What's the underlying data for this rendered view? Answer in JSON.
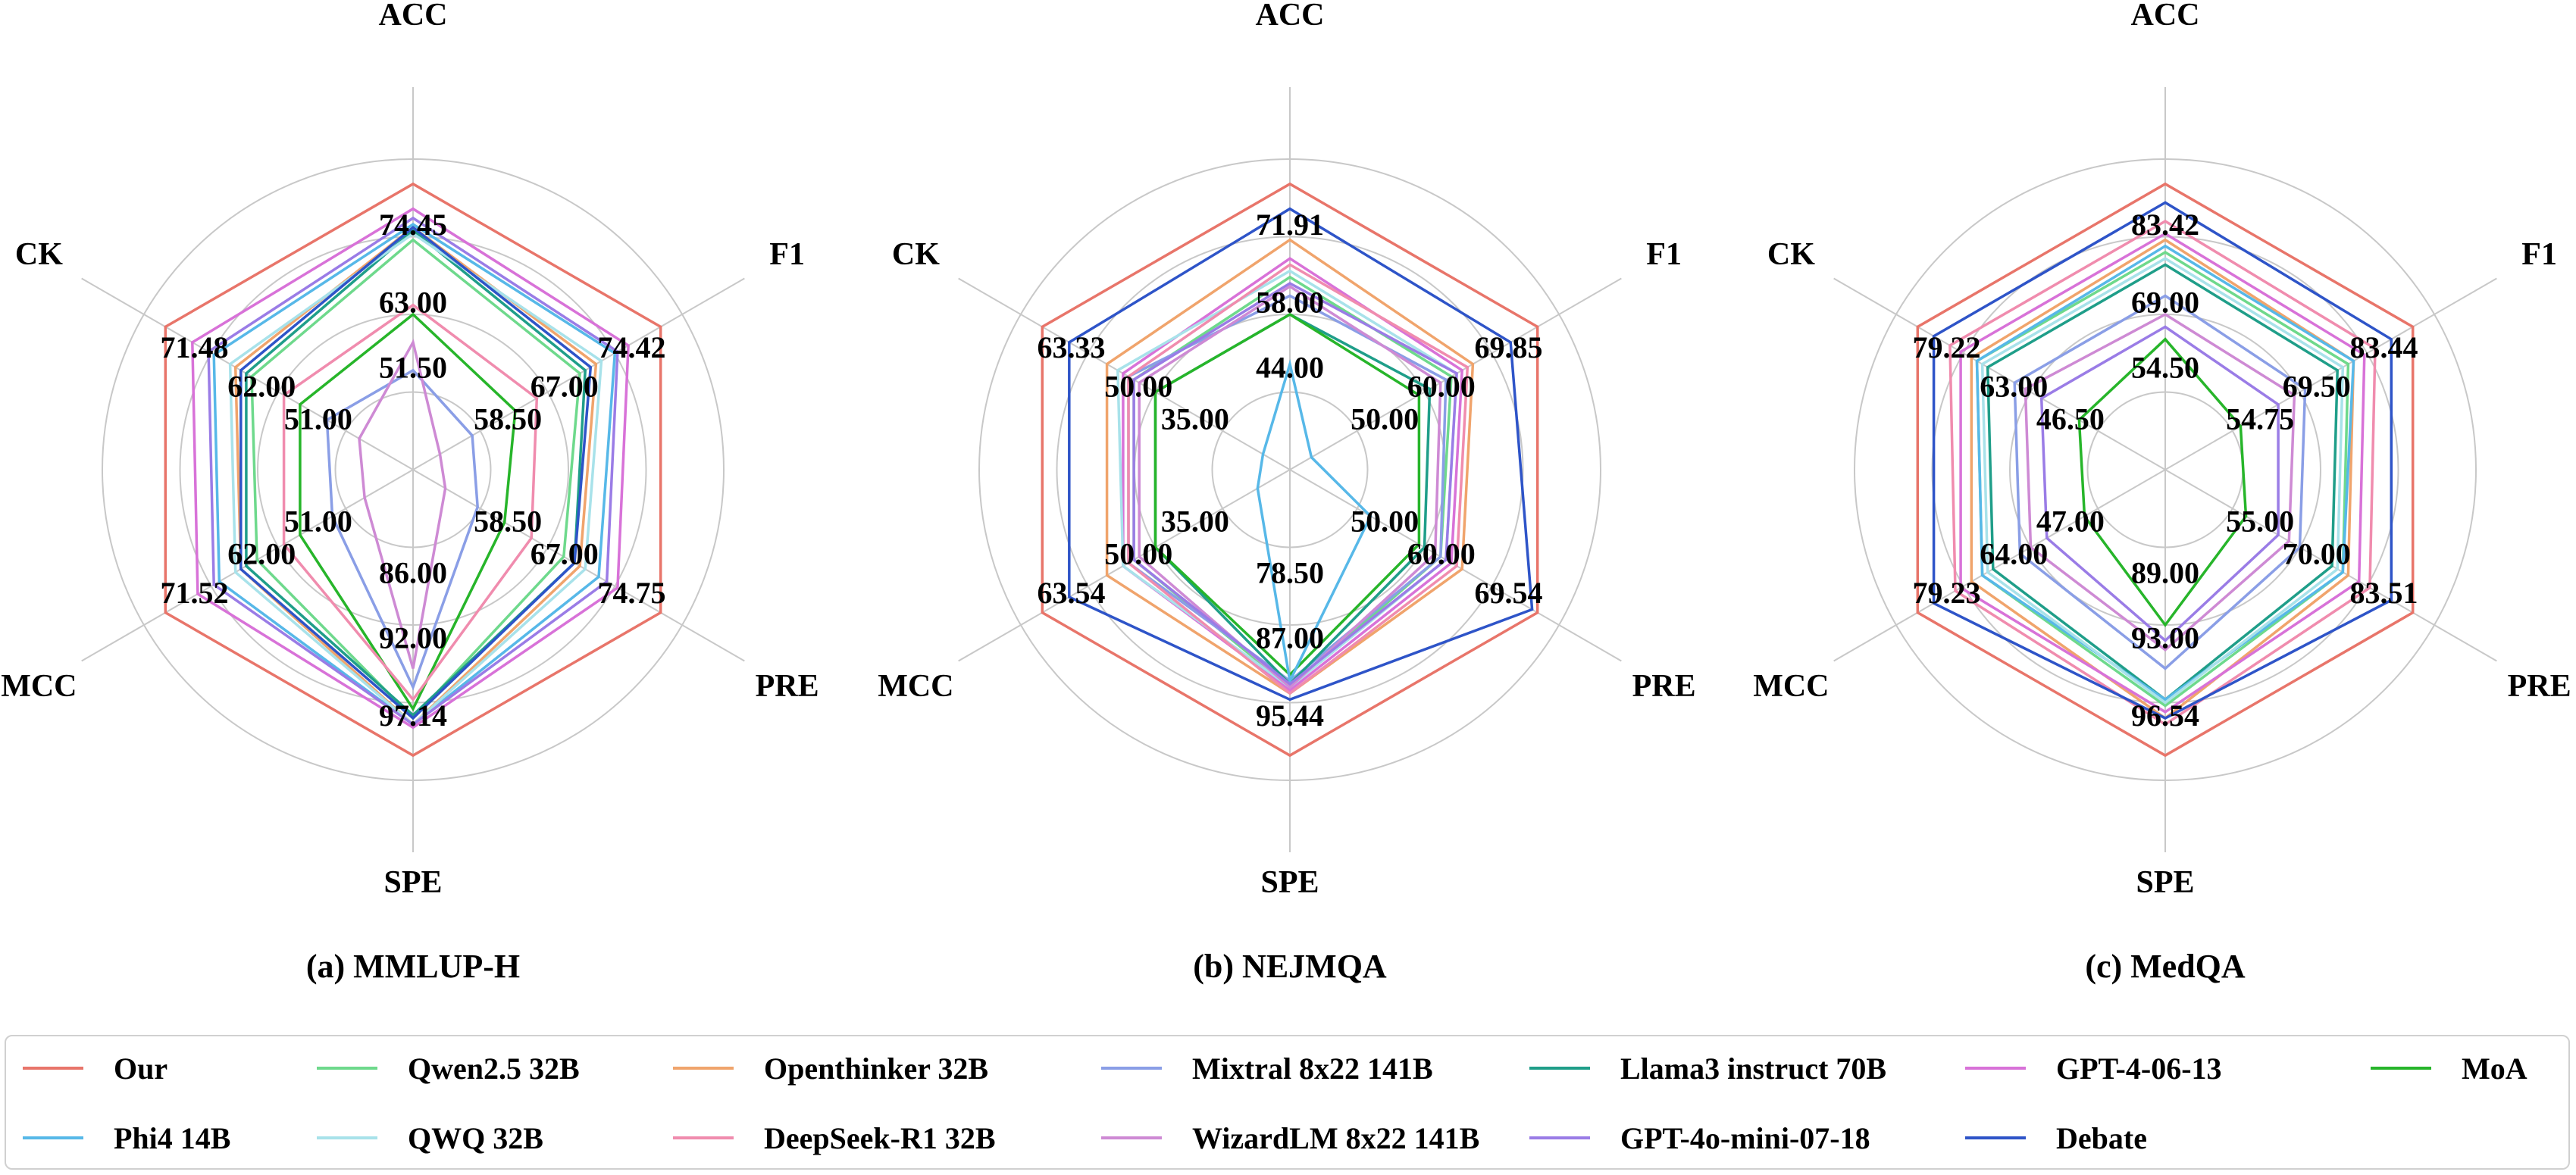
{
  "chart_data": [
    {
      "type": "radar",
      "caption": "(a) MMLUP-H",
      "axes": [
        "ACC",
        "F1",
        "PRE",
        "SPE",
        "MCC",
        "CK"
      ],
      "tick_labels": [
        [
          "51.50",
          "63.00",
          "74.45"
        ],
        [
          "58.50",
          "67.00",
          "74.42"
        ],
        [
          "58.50",
          "67.00",
          "74.75"
        ],
        [
          "86.00",
          "92.00",
          "97.14"
        ],
        [
          "51.00",
          "62.00",
          "71.52"
        ],
        [
          "51.00",
          "62.00",
          "71.48"
        ]
      ],
      "series": [
        {
          "name": "Our",
          "values": [
            0.92,
            0.92,
            0.92,
            0.92,
            0.92,
            0.92
          ]
        },
        {
          "name": "Qwen2.5 32B",
          "values": [
            0.74,
            0.62,
            0.56,
            0.8,
            0.58,
            0.6
          ]
        },
        {
          "name": "Openthinker 32B",
          "values": [
            0.78,
            0.68,
            0.62,
            0.82,
            0.64,
            0.66
          ]
        },
        {
          "name": "Mixtral 8x22 141B",
          "values": [
            0.32,
            0.22,
            0.24,
            0.7,
            0.3,
            0.32
          ]
        },
        {
          "name": "Llama3 instruct 70B",
          "values": [
            0.77,
            0.64,
            0.6,
            0.79,
            0.62,
            0.62
          ]
        },
        {
          "name": "GPT-4-06-13",
          "values": [
            0.84,
            0.8,
            0.76,
            0.83,
            0.8,
            0.82
          ]
        },
        {
          "name": "MoA",
          "values": [
            0.5,
            0.38,
            0.34,
            0.77,
            0.42,
            0.42
          ]
        },
        {
          "name": "Phi4 14B",
          "values": [
            0.79,
            0.75,
            0.69,
            0.82,
            0.72,
            0.74
          ]
        },
        {
          "name": "QWQ 32B",
          "values": [
            0.76,
            0.7,
            0.64,
            0.82,
            0.66,
            0.68
          ]
        },
        {
          "name": "DeepSeek-R1 32B",
          "values": [
            0.53,
            0.46,
            0.44,
            0.74,
            0.48,
            0.48
          ]
        },
        {
          "name": "WizardLM 8x22 141B",
          "values": [
            0.41,
            0.1,
            0.12,
            0.64,
            0.18,
            0.2
          ]
        },
        {
          "name": "GPT-4o-mini-07-18",
          "values": [
            0.81,
            0.76,
            0.72,
            0.82,
            0.74,
            0.76
          ]
        },
        {
          "name": "Debate",
          "values": [
            0.78,
            0.66,
            0.6,
            0.8,
            0.64,
            0.64
          ]
        }
      ]
    },
    {
      "type": "radar",
      "caption": "(b) NEJMQA",
      "axes": [
        "ACC",
        "F1",
        "PRE",
        "SPE",
        "MCC",
        "CK"
      ],
      "tick_labels": [
        [
          "44.00",
          "58.00",
          "71.91"
        ],
        [
          "50.00",
          "60.00",
          "69.85"
        ],
        [
          "50.00",
          "60.00",
          "69.54"
        ],
        [
          "78.50",
          "87.00",
          "95.44"
        ],
        [
          "35.00",
          "50.00",
          "63.54"
        ],
        [
          "35.00",
          "50.00",
          "63.33"
        ]
      ],
      "series": [
        {
          "name": "Our",
          "values": [
            0.92,
            0.92,
            0.92,
            0.92,
            0.92,
            0.92
          ]
        },
        {
          "name": "Qwen2.5 32B",
          "values": [
            0.62,
            0.6,
            0.56,
            0.7,
            0.58,
            0.58
          ]
        },
        {
          "name": "Openthinker 32B",
          "values": [
            0.74,
            0.68,
            0.64,
            0.72,
            0.68,
            0.68
          ]
        },
        {
          "name": "Mixtral 8x22 141B",
          "values": [
            0.56,
            0.58,
            0.56,
            0.68,
            0.6,
            0.6
          ]
        },
        {
          "name": "Llama3 instruct 70B",
          "values": [
            0.5,
            0.52,
            0.5,
            0.69,
            0.5,
            0.5
          ]
        },
        {
          "name": "GPT-4-06-13",
          "values": [
            0.68,
            0.64,
            0.6,
            0.71,
            0.62,
            0.62
          ]
        },
        {
          "name": "MoA",
          "values": [
            0.5,
            0.48,
            0.48,
            0.66,
            0.5,
            0.5
          ]
        },
        {
          "name": "Phi4 14B",
          "values": [
            0.34,
            0.08,
            0.3,
            0.68,
            0.12,
            0.1
          ]
        },
        {
          "name": "QWQ 32B",
          "values": [
            0.64,
            0.62,
            0.58,
            0.7,
            0.62,
            0.64
          ]
        },
        {
          "name": "DeepSeek-R1 32B",
          "values": [
            0.66,
            0.66,
            0.62,
            0.72,
            0.6,
            0.6
          ]
        },
        {
          "name": "WizardLM 8x22 141B",
          "values": [
            0.59,
            0.56,
            0.54,
            0.7,
            0.56,
            0.56
          ]
        },
        {
          "name": "GPT-4o-mini-07-18",
          "values": [
            0.6,
            0.62,
            0.58,
            0.69,
            0.58,
            0.58
          ]
        },
        {
          "name": "Debate",
          "values": [
            0.84,
            0.82,
            0.9,
            0.74,
            0.82,
            0.82
          ]
        }
      ]
    },
    {
      "type": "radar",
      "caption": "(c) MedQA",
      "axes": [
        "ACC",
        "F1",
        "PRE",
        "SPE",
        "MCC",
        "CK"
      ],
      "tick_labels": [
        [
          "54.50",
          "69.00",
          "83.42"
        ],
        [
          "54.75",
          "69.50",
          "83.44"
        ],
        [
          "55.00",
          "70.00",
          "83.51"
        ],
        [
          "89.00",
          "93.00",
          "96.54"
        ],
        [
          "47.00",
          "64.00",
          "79.23"
        ],
        [
          "46.50",
          "63.00",
          "79.22"
        ]
      ],
      "series": [
        {
          "name": "Our",
          "values": [
            0.92,
            0.92,
            0.92,
            0.92,
            0.92,
            0.92
          ]
        },
        {
          "name": "Qwen2.5 32B",
          "values": [
            0.7,
            0.68,
            0.66,
            0.76,
            0.68,
            0.7
          ]
        },
        {
          "name": "Openthinker 32B",
          "values": [
            0.74,
            0.7,
            0.68,
            0.8,
            0.72,
            0.72
          ]
        },
        {
          "name": "Mixtral 8x22 141B",
          "values": [
            0.56,
            0.52,
            0.5,
            0.64,
            0.54,
            0.56
          ]
        },
        {
          "name": "Llama3 instruct 70B",
          "values": [
            0.66,
            0.64,
            0.62,
            0.74,
            0.64,
            0.66
          ]
        },
        {
          "name": "GPT-4-06-13",
          "values": [
            0.76,
            0.74,
            0.72,
            0.78,
            0.76,
            0.76
          ]
        },
        {
          "name": "MoA",
          "values": [
            0.42,
            0.28,
            0.3,
            0.5,
            0.3,
            0.32
          ]
        },
        {
          "name": "Phi4 14B",
          "values": [
            0.72,
            0.7,
            0.66,
            0.74,
            0.68,
            0.7
          ]
        },
        {
          "name": "QWQ 32B",
          "values": [
            0.68,
            0.66,
            0.64,
            0.75,
            0.66,
            0.68
          ]
        },
        {
          "name": "DeepSeek-R1 32B",
          "values": [
            0.8,
            0.78,
            0.76,
            0.82,
            0.78,
            0.8
          ]
        },
        {
          "name": "WizardLM 8x22 141B",
          "values": [
            0.5,
            0.48,
            0.46,
            0.58,
            0.5,
            0.52
          ]
        },
        {
          "name": "GPT-4o-mini-07-18",
          "values": [
            0.46,
            0.42,
            0.42,
            0.55,
            0.44,
            0.46
          ]
        },
        {
          "name": "Debate",
          "values": [
            0.86,
            0.84,
            0.84,
            0.8,
            0.86,
            0.86
          ]
        }
      ]
    }
  ],
  "legend": [
    {
      "label": "Our",
      "color": "#e8756a"
    },
    {
      "label": "Qwen2.5 32B",
      "color": "#6ed98c"
    },
    {
      "label": "Openthinker 32B",
      "color": "#f0a46c"
    },
    {
      "label": "Mixtral 8x22 141B",
      "color": "#8a9ee6"
    },
    {
      "label": "Llama3 instruct 70B",
      "color": "#1f9e89"
    },
    {
      "label": "GPT-4-06-13",
      "color": "#d872d8"
    },
    {
      "label": "MoA",
      "color": "#27b52a"
    },
    {
      "label": "Phi4 14B",
      "color": "#57b8e8"
    },
    {
      "label": "QWQ 32B",
      "color": "#a8e2ea"
    },
    {
      "label": "DeepSeek-R1 32B",
      "color": "#f08cae"
    },
    {
      "label": "WizardLM 8x22 141B",
      "color": "#ce8ad4"
    },
    {
      "label": "GPT-4o-mini-07-18",
      "color": "#9a7ce6"
    },
    {
      "label": "Debate",
      "color": "#2e54c8"
    }
  ]
}
